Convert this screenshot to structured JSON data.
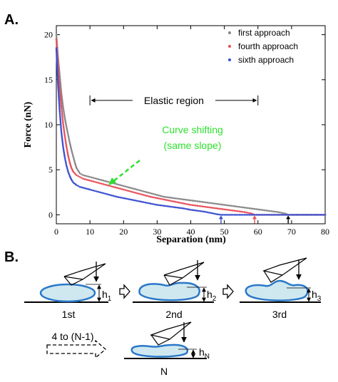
{
  "panel_a_label": "A.",
  "panel_b_label": "B.",
  "chart_data": {
    "type": "scatter",
    "xlabel": "Separation (nm)",
    "ylabel": "Force (nN)",
    "xlim": [
      0,
      80
    ],
    "ylim": [
      -1,
      21
    ],
    "xticks": [
      0,
      10,
      20,
      30,
      40,
      50,
      60,
      70,
      80
    ],
    "yticks": [
      0,
      5,
      10,
      15,
      20
    ],
    "legend_position": "top-right",
    "series": [
      {
        "name": "first approach",
        "color": "#888888",
        "points": [
          [
            0,
            20.0
          ],
          [
            0.5,
            17.5
          ],
          [
            1,
            15.5
          ],
          [
            1.5,
            13.5
          ],
          [
            2,
            12.0
          ],
          [
            2.5,
            10.8
          ],
          [
            3,
            9.8
          ],
          [
            3.5,
            8.9
          ],
          [
            4,
            8.0
          ],
          [
            4.5,
            7.2
          ],
          [
            5,
            6.5
          ],
          [
            5.5,
            5.8
          ],
          [
            6,
            5.2
          ],
          [
            6.5,
            4.9
          ],
          [
            7,
            4.6
          ],
          [
            8,
            4.4
          ],
          [
            9,
            4.3
          ],
          [
            10,
            4.2
          ],
          [
            12,
            4.0
          ],
          [
            14,
            3.8
          ],
          [
            16,
            3.6
          ],
          [
            18,
            3.4
          ],
          [
            20,
            3.2
          ],
          [
            22,
            3.0
          ],
          [
            24,
            2.8
          ],
          [
            26,
            2.6
          ],
          [
            28,
            2.4
          ],
          [
            30,
            2.2
          ],
          [
            32,
            2.0
          ],
          [
            34,
            1.9
          ],
          [
            36,
            1.8
          ],
          [
            38,
            1.7
          ],
          [
            40,
            1.6
          ],
          [
            42,
            1.5
          ],
          [
            44,
            1.4
          ],
          [
            46,
            1.3
          ],
          [
            48,
            1.2
          ],
          [
            50,
            1.1
          ],
          [
            52,
            1.0
          ],
          [
            54,
            0.9
          ],
          [
            56,
            0.8
          ],
          [
            58,
            0.7
          ],
          [
            60,
            0.6
          ],
          [
            62,
            0.5
          ],
          [
            64,
            0.4
          ],
          [
            66,
            0.3
          ],
          [
            68,
            0.15
          ],
          [
            69,
            0.0
          ],
          [
            70,
            0.0
          ],
          [
            72,
            0.0
          ],
          [
            74,
            0.0
          ],
          [
            76,
            0.0
          ],
          [
            78,
            0.0
          ],
          [
            80,
            0.0
          ]
        ]
      },
      {
        "name": "fourth approach",
        "color": "#e8505b",
        "points": [
          [
            0,
            19.5
          ],
          [
            0.5,
            16.5
          ],
          [
            1,
            14.0
          ],
          [
            1.5,
            12.0
          ],
          [
            2,
            10.2
          ],
          [
            2.5,
            8.8
          ],
          [
            3,
            7.6
          ],
          [
            3.5,
            6.6
          ],
          [
            4,
            5.8
          ],
          [
            4.5,
            5.2
          ],
          [
            5,
            4.8
          ],
          [
            6,
            4.4
          ],
          [
            7,
            4.2
          ],
          [
            8,
            4.0
          ],
          [
            10,
            3.8
          ],
          [
            12,
            3.6
          ],
          [
            14,
            3.4
          ],
          [
            16,
            3.2
          ],
          [
            18,
            3.0
          ],
          [
            20,
            2.8
          ],
          [
            22,
            2.6
          ],
          [
            24,
            2.4
          ],
          [
            26,
            2.2
          ],
          [
            28,
            2.0
          ],
          [
            30,
            1.85
          ],
          [
            32,
            1.7
          ],
          [
            34,
            1.55
          ],
          [
            36,
            1.4
          ],
          [
            38,
            1.25
          ],
          [
            40,
            1.1
          ],
          [
            42,
            1.0
          ],
          [
            44,
            0.9
          ],
          [
            46,
            0.8
          ],
          [
            48,
            0.7
          ],
          [
            50,
            0.6
          ],
          [
            52,
            0.5
          ],
          [
            54,
            0.4
          ],
          [
            56,
            0.3
          ],
          [
            58,
            0.15
          ],
          [
            59,
            0.0
          ],
          [
            60,
            0.0
          ],
          [
            62,
            0.0
          ],
          [
            64,
            0.0
          ],
          [
            66,
            0.0
          ],
          [
            68,
            0.0
          ],
          [
            70,
            0.0
          ],
          [
            72,
            0.0
          ],
          [
            74,
            0.0
          ],
          [
            76,
            0.0
          ],
          [
            78,
            0.0
          ],
          [
            80,
            0.0
          ]
        ]
      },
      {
        "name": "sixth approach",
        "color": "#3a4fd0",
        "points": [
          [
            0,
            18.5
          ],
          [
            0.5,
            14.5
          ],
          [
            1,
            11.5
          ],
          [
            1.5,
            9.2
          ],
          [
            2,
            7.6
          ],
          [
            2.5,
            6.4
          ],
          [
            3,
            5.5
          ],
          [
            3.5,
            4.8
          ],
          [
            4,
            4.3
          ],
          [
            4.5,
            3.9
          ],
          [
            5,
            3.6
          ],
          [
            6,
            3.3
          ],
          [
            7,
            3.1
          ],
          [
            8,
            3.0
          ],
          [
            10,
            2.8
          ],
          [
            12,
            2.6
          ],
          [
            14,
            2.4
          ],
          [
            16,
            2.2
          ],
          [
            18,
            2.0
          ],
          [
            20,
            1.85
          ],
          [
            22,
            1.7
          ],
          [
            24,
            1.55
          ],
          [
            26,
            1.4
          ],
          [
            28,
            1.25
          ],
          [
            30,
            1.1
          ],
          [
            32,
            1.0
          ],
          [
            34,
            0.9
          ],
          [
            36,
            0.8
          ],
          [
            38,
            0.7
          ],
          [
            40,
            0.55
          ],
          [
            42,
            0.45
          ],
          [
            44,
            0.35
          ],
          [
            46,
            0.2
          ],
          [
            48,
            0.05
          ],
          [
            49,
            0.0
          ],
          [
            50,
            0.0
          ],
          [
            52,
            0.0
          ],
          [
            54,
            0.0
          ],
          [
            56,
            0.0
          ],
          [
            58,
            0.0
          ],
          [
            60,
            0.0
          ],
          [
            62,
            0.0
          ],
          [
            64,
            0.0
          ],
          [
            66,
            0.0
          ],
          [
            68,
            0.0
          ],
          [
            70,
            0.0
          ],
          [
            72,
            0.0
          ],
          [
            74,
            0.0
          ],
          [
            76,
            0.0
          ],
          [
            78,
            0.0
          ],
          [
            80,
            0.0
          ]
        ]
      }
    ],
    "annotations": {
      "elastic_region_label": "Elastic region",
      "elastic_region_range": [
        10,
        60
      ],
      "elastic_region_y": 12.7,
      "curve_shift_line1": "Curve shifting",
      "curve_shift_line2": "(same slope)",
      "curve_shift_color": "#2ee02e",
      "contact_arrows": [
        {
          "x": 49,
          "color": "#3a4fd0"
        },
        {
          "x": 59,
          "color": "#e8505b"
        },
        {
          "x": 69,
          "color": "#000000"
        }
      ]
    }
  },
  "panel_b": {
    "steps": [
      {
        "label": "1st",
        "height_label": "h",
        "height_sub": "1"
      },
      {
        "label": "2nd",
        "height_label": "h",
        "height_sub": "2"
      },
      {
        "label": "3rd",
        "height_label": "h",
        "height_sub": "3"
      },
      {
        "label": "N",
        "height_label": "h",
        "height_sub": "N"
      }
    ],
    "repeat_label": "4 to (N-1)",
    "cell_fill": "#cfe8f0",
    "cell_stroke": "#2a78c8"
  }
}
